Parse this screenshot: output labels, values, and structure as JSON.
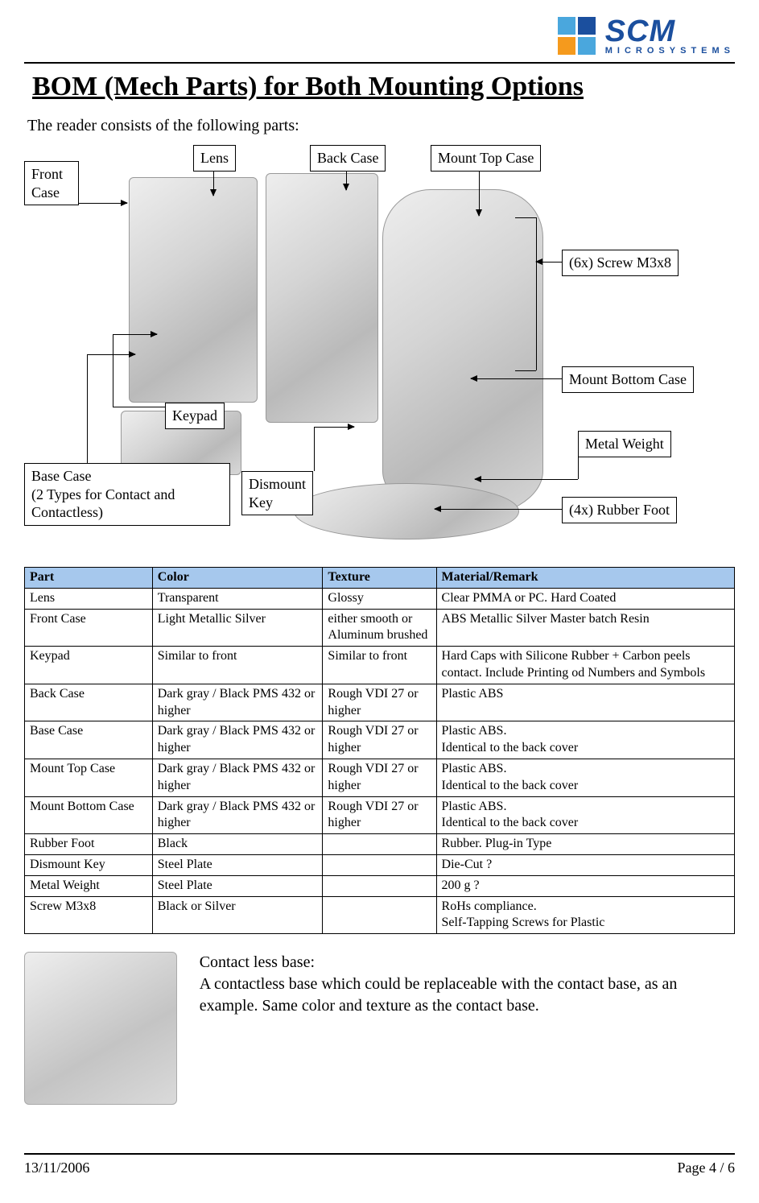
{
  "logo": {
    "name": "SCM",
    "subname": "MICROSYSTEMS",
    "colors": {
      "blue": "#1b4f9e",
      "orange": "#f59a1d",
      "cyan": "#4aa7dd"
    }
  },
  "title": "BOM (Mech Parts) for Both Mounting Options",
  "intro": "The reader consists of the following parts:",
  "labels": {
    "front_case": "Front\nCase",
    "lens": "Lens",
    "back_case": "Back Case",
    "mount_top_case": "Mount Top Case",
    "screws": "(6x) Screw M3x8",
    "mount_bottom_case": "Mount Bottom Case",
    "metal_weight": "Metal Weight",
    "rubber_foot": "(4x) Rubber Foot",
    "keypad": "Keypad",
    "dismount_key": "Dismount\nKey",
    "base_case": "Base Case\n(2 Types for Contact and\nContactless)"
  },
  "table": {
    "header_bg": "#a6c8ed",
    "columns": [
      "Part",
      "Color",
      "Texture",
      "Material/Remark"
    ],
    "col_widths": [
      "18%",
      "24%",
      "16%",
      "42%"
    ],
    "rows": [
      [
        "Lens",
        "Transparent",
        "Glossy",
        "Clear PMMA or PC. Hard Coated"
      ],
      [
        "Front Case",
        "Light Metallic Silver",
        "either smooth or Aluminum brushed",
        "ABS Metallic Silver Master batch Resin"
      ],
      [
        "Keypad",
        "Similar to front",
        "Similar to front",
        "Hard Caps with Silicone Rubber + Carbon peels contact. Include Printing od Numbers and Symbols"
      ],
      [
        "Back Case",
        "Dark gray  / Black PMS 432 or higher",
        "Rough  VDI 27 or higher",
        "Plastic ABS"
      ],
      [
        "Base Case",
        "Dark gray  / Black PMS 432 or higher",
        "Rough  VDI 27 or higher",
        "Plastic ABS.\nIdentical to the  back cover"
      ],
      [
        "Mount Top Case",
        "Dark gray  / Black PMS 432 or higher",
        "Rough  VDI 27 or higher",
        "Plastic ABS.\nIdentical to the  back cover\n"
      ],
      [
        "Mount Bottom Case",
        "Dark gray  / Black PMS 432 or higher",
        "Rough  VDI 27 or higher",
        "Plastic ABS.\nIdentical to the  back cover"
      ],
      [
        "Rubber Foot",
        "Black",
        "",
        "Rubber. Plug-in Type"
      ],
      [
        "Dismount Key",
        "Steel Plate",
        "",
        "Die-Cut ?"
      ],
      [
        "Metal Weight",
        "Steel Plate",
        "",
        "200 g ?"
      ],
      [
        "Screw M3x8",
        "Black or Silver",
        "",
        "RoHs compliance.\nSelf-Tapping Screws for Plastic"
      ]
    ]
  },
  "contactless": {
    "heading": "Contact less base:",
    "body": "A contactless base which could be replaceable with the contact base, as an example. Same color and texture as the contact base."
  },
  "footer": {
    "date": "13/11/2006",
    "page": "Page 4 / 6"
  }
}
